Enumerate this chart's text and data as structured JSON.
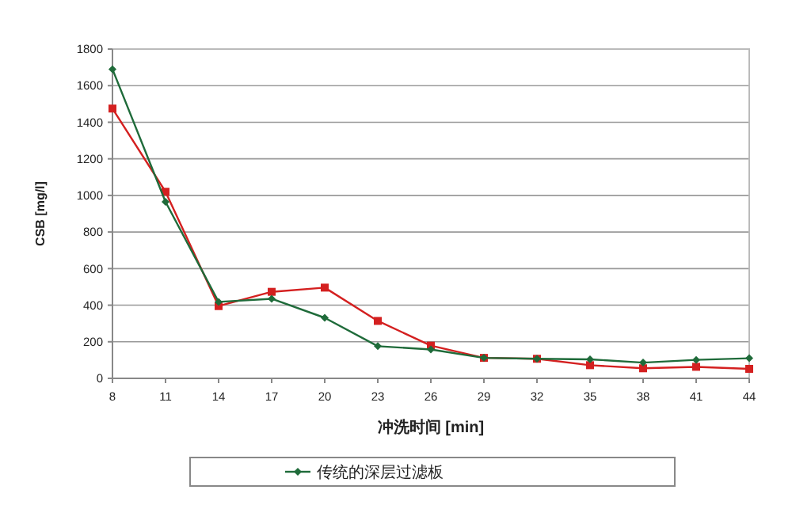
{
  "chart_data": {
    "type": "line",
    "xlabel": "冲洗时间   [min]",
    "ylabel": "CSB [mg/l]",
    "categories": [
      "8",
      "11",
      "14",
      "17",
      "20",
      "23",
      "26",
      "29",
      "32",
      "35",
      "38",
      "41",
      "44"
    ],
    "series": [
      {
        "name": "传统的深层过滤板",
        "color": "#1f6b3a",
        "marker": "diamond",
        "values": [
          1690,
          965,
          418,
          435,
          331,
          176,
          158,
          112,
          107,
          104,
          86,
          101,
          110
        ]
      },
      {
        "color": "#d42020",
        "marker": "square",
        "values": [
          1475,
          1020,
          395,
          473,
          496,
          314,
          179,
          112,
          107,
          72,
          55,
          63,
          52
        ]
      }
    ],
    "ylim": [
      0,
      1800
    ],
    "yticks": [
      0,
      200,
      400,
      600,
      800,
      1000,
      1200,
      1400,
      1600,
      1800
    ],
    "grid": "y",
    "legend": "bottom"
  }
}
